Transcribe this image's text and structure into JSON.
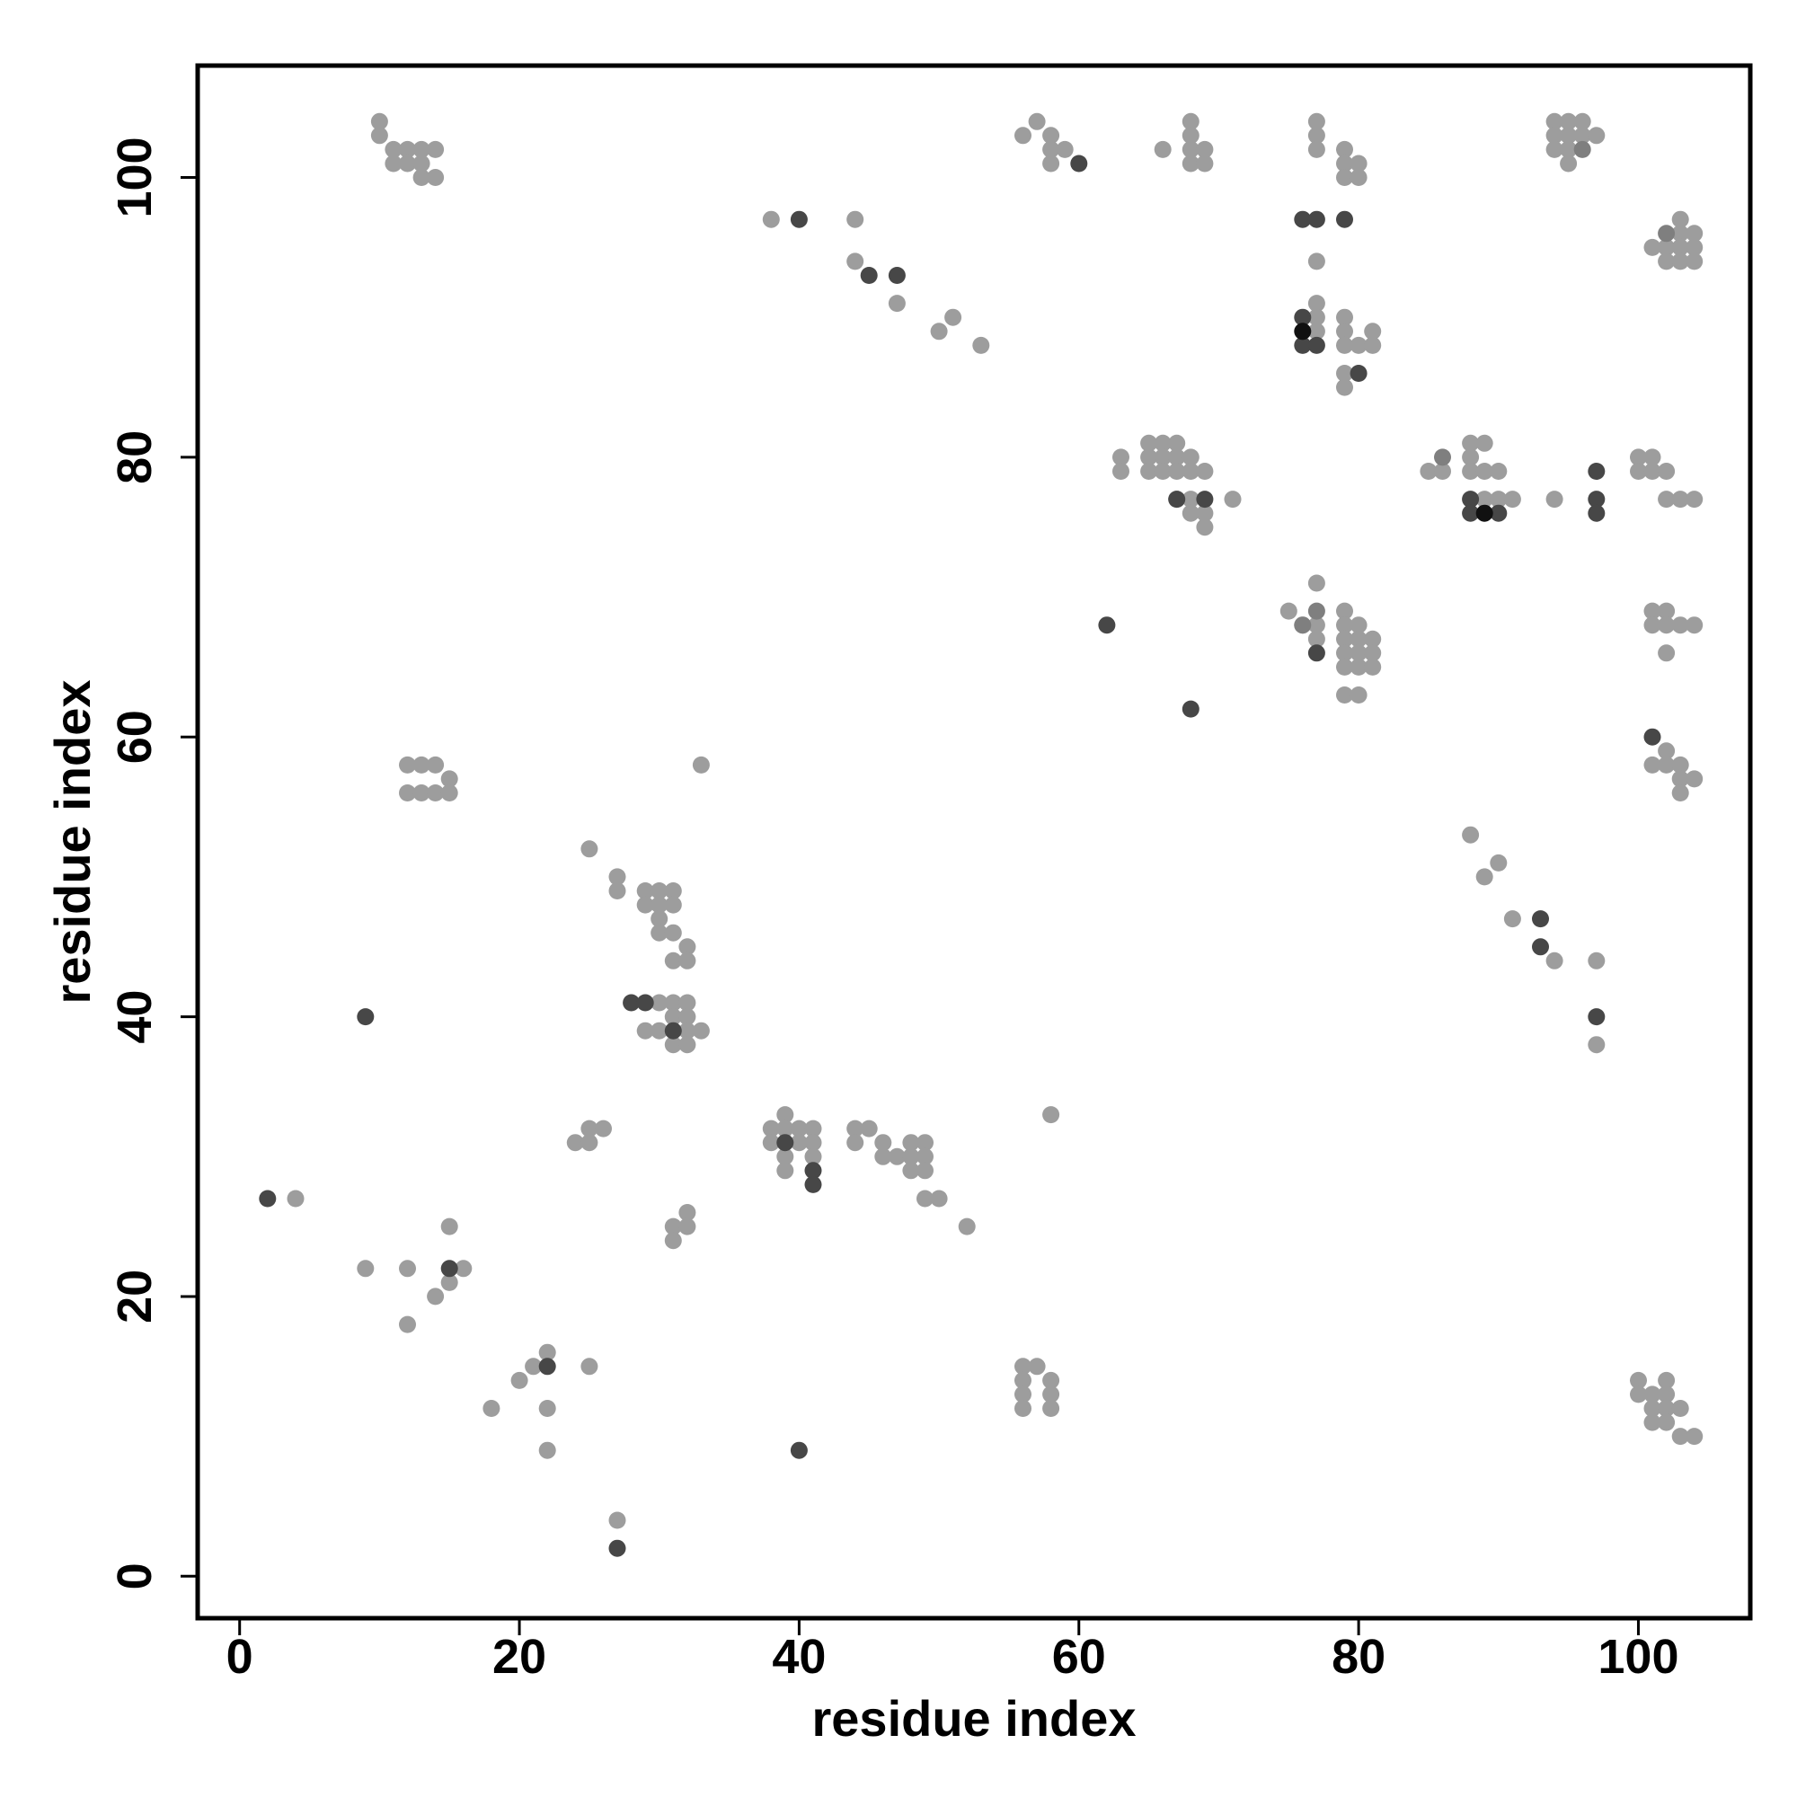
{
  "chart_data": {
    "type": "scatter",
    "title": "",
    "xlabel": "residue index",
    "ylabel": "residue index",
    "xlim": [
      -3,
      108
    ],
    "ylim": [
      -3,
      108
    ],
    "x_ticks": [
      0,
      20,
      40,
      60,
      80,
      100
    ],
    "y_ticks": [
      0,
      20,
      40,
      60,
      80,
      100
    ],
    "x_tick_labels": [
      "0",
      "20",
      "40",
      "60",
      "80",
      "100"
    ],
    "y_tick_labels": [
      "0",
      "20",
      "40",
      "60",
      "80",
      "100"
    ],
    "grid": false,
    "colors": {
      "light": "#9d9d9d",
      "mid": "#7f7f7f",
      "dark": "#474747",
      "black": "#111111"
    },
    "series": [
      {
        "color_key": "light",
        "points": [
          [
            10,
            104
          ],
          [
            10,
            103
          ],
          [
            11,
            102
          ],
          [
            11,
            101
          ],
          [
            12,
            102
          ],
          [
            12,
            101
          ],
          [
            13,
            102
          ],
          [
            13,
            101
          ],
          [
            14,
            102
          ],
          [
            14,
            100
          ],
          [
            13,
            100
          ],
          [
            12,
            58
          ],
          [
            13,
            58
          ],
          [
            14,
            58
          ],
          [
            12,
            56
          ],
          [
            13,
            56
          ],
          [
            14,
            56
          ],
          [
            15,
            57
          ],
          [
            15,
            56
          ],
          [
            4,
            27
          ],
          [
            9,
            22
          ],
          [
            12,
            22
          ],
          [
            12,
            18
          ],
          [
            14,
            20
          ],
          [
            15,
            25
          ],
          [
            15,
            21
          ],
          [
            16,
            22
          ],
          [
            18,
            12
          ],
          [
            20,
            14
          ],
          [
            21,
            15
          ],
          [
            22,
            16
          ],
          [
            22,
            12
          ],
          [
            22,
            9
          ],
          [
            25,
            15
          ],
          [
            27,
            4
          ],
          [
            24,
            31
          ],
          [
            25,
            32
          ],
          [
            25,
            31
          ],
          [
            26,
            32
          ],
          [
            31,
            25
          ],
          [
            31,
            24
          ],
          [
            32,
            26
          ],
          [
            32,
            25
          ],
          [
            25,
            52
          ],
          [
            27,
            50
          ],
          [
            27,
            49
          ],
          [
            29,
            49
          ],
          [
            29,
            48
          ],
          [
            30,
            49
          ],
          [
            30,
            48
          ],
          [
            30,
            47
          ],
          [
            30,
            46
          ],
          [
            31,
            49
          ],
          [
            31,
            48
          ],
          [
            31,
            46
          ],
          [
            31,
            44
          ],
          [
            32,
            45
          ],
          [
            32,
            44
          ],
          [
            30,
            41
          ],
          [
            31,
            41
          ],
          [
            32,
            41
          ],
          [
            31,
            40
          ],
          [
            32,
            40
          ],
          [
            29,
            39
          ],
          [
            30,
            39
          ],
          [
            32,
            39
          ],
          [
            33,
            39
          ],
          [
            31,
            38
          ],
          [
            32,
            38
          ],
          [
            33,
            58
          ],
          [
            38,
            32
          ],
          [
            38,
            31
          ],
          [
            39,
            33
          ],
          [
            39,
            32
          ],
          [
            39,
            30
          ],
          [
            39,
            29
          ],
          [
            40,
            32
          ],
          [
            40,
            31
          ],
          [
            41,
            32
          ],
          [
            41,
            31
          ],
          [
            41,
            30
          ],
          [
            44,
            32
          ],
          [
            44,
            31
          ],
          [
            45,
            32
          ],
          [
            46,
            31
          ],
          [
            46,
            30
          ],
          [
            47,
            30
          ],
          [
            48,
            31
          ],
          [
            48,
            30
          ],
          [
            48,
            29
          ],
          [
            49,
            31
          ],
          [
            49,
            30
          ],
          [
            49,
            29
          ],
          [
            49,
            27
          ],
          [
            50,
            27
          ],
          [
            52,
            25
          ],
          [
            56,
            15
          ],
          [
            57,
            15
          ],
          [
            56,
            14
          ],
          [
            58,
            14
          ],
          [
            56,
            13
          ],
          [
            58,
            13
          ],
          [
            56,
            12
          ],
          [
            58,
            12
          ],
          [
            58,
            33
          ],
          [
            38,
            97
          ],
          [
            44,
            97
          ],
          [
            44,
            94
          ],
          [
            47,
            91
          ],
          [
            50,
            89
          ],
          [
            51,
            90
          ],
          [
            53,
            88
          ],
          [
            56,
            103
          ],
          [
            57,
            104
          ],
          [
            58,
            103
          ],
          [
            58,
            102
          ],
          [
            58,
            101
          ],
          [
            59,
            102
          ],
          [
            66,
            102
          ],
          [
            68,
            104
          ],
          [
            68,
            103
          ],
          [
            68,
            102
          ],
          [
            68,
            101
          ],
          [
            69,
            102
          ],
          [
            69,
            101
          ],
          [
            77,
            104
          ],
          [
            77,
            103
          ],
          [
            77,
            102
          ],
          [
            79,
            102
          ],
          [
            79,
            101
          ],
          [
            79,
            100
          ],
          [
            80,
            101
          ],
          [
            80,
            100
          ],
          [
            77,
            94
          ],
          [
            77,
            91
          ],
          [
            77,
            90
          ],
          [
            77,
            89
          ],
          [
            79,
            90
          ],
          [
            79,
            89
          ],
          [
            79,
            88
          ],
          [
            80,
            88
          ],
          [
            81,
            89
          ],
          [
            81,
            88
          ],
          [
            79,
            86
          ],
          [
            79,
            85
          ],
          [
            63,
            80
          ],
          [
            63,
            79
          ],
          [
            65,
            81
          ],
          [
            65,
            80
          ],
          [
            65,
            79
          ],
          [
            66,
            81
          ],
          [
            66,
            80
          ],
          [
            66,
            79
          ],
          [
            67,
            81
          ],
          [
            67,
            80
          ],
          [
            67,
            79
          ],
          [
            67,
            77
          ],
          [
            68,
            80
          ],
          [
            68,
            79
          ],
          [
            68,
            77
          ],
          [
            68,
            76
          ],
          [
            69,
            79
          ],
          [
            69,
            76
          ],
          [
            69,
            75
          ],
          [
            71,
            77
          ],
          [
            75,
            69
          ],
          [
            76,
            68
          ],
          [
            77,
            71
          ],
          [
            77,
            68
          ],
          [
            77,
            67
          ],
          [
            79,
            69
          ],
          [
            79,
            68
          ],
          [
            79,
            67
          ],
          [
            79,
            66
          ],
          [
            79,
            65
          ],
          [
            80,
            68
          ],
          [
            80,
            67
          ],
          [
            80,
            66
          ],
          [
            80,
            65
          ],
          [
            81,
            67
          ],
          [
            81,
            66
          ],
          [
            81,
            65
          ],
          [
            79,
            63
          ],
          [
            80,
            63
          ],
          [
            85,
            79
          ],
          [
            86,
            79
          ],
          [
            88,
            81
          ],
          [
            88,
            80
          ],
          [
            88,
            79
          ],
          [
            89,
            81
          ],
          [
            89,
            79
          ],
          [
            89,
            77
          ],
          [
            90,
            79
          ],
          [
            90,
            77
          ],
          [
            91,
            77
          ],
          [
            94,
            77
          ],
          [
            94,
            104
          ],
          [
            95,
            104
          ],
          [
            96,
            104
          ],
          [
            94,
            103
          ],
          [
            95,
            103
          ],
          [
            96,
            103
          ],
          [
            97,
            103
          ],
          [
            94,
            102
          ],
          [
            95,
            102
          ],
          [
            95,
            101
          ],
          [
            103,
            97
          ],
          [
            101,
            95
          ],
          [
            102,
            95
          ],
          [
            103,
            96
          ],
          [
            103,
            95
          ],
          [
            104,
            96
          ],
          [
            104,
            95
          ],
          [
            102,
            94
          ],
          [
            103,
            94
          ],
          [
            104,
            94
          ],
          [
            100,
            80
          ],
          [
            101,
            80
          ],
          [
            100,
            79
          ],
          [
            101,
            79
          ],
          [
            102,
            79
          ],
          [
            102,
            77
          ],
          [
            103,
            77
          ],
          [
            104,
            77
          ],
          [
            101,
            69
          ],
          [
            102,
            69
          ],
          [
            101,
            68
          ],
          [
            102,
            68
          ],
          [
            103,
            68
          ],
          [
            104,
            68
          ],
          [
            102,
            66
          ],
          [
            102,
            59
          ],
          [
            101,
            58
          ],
          [
            102,
            58
          ],
          [
            103,
            58
          ],
          [
            103,
            57
          ],
          [
            104,
            57
          ],
          [
            103,
            56
          ],
          [
            88,
            53
          ],
          [
            89,
            50
          ],
          [
            90,
            51
          ],
          [
            91,
            47
          ],
          [
            94,
            44
          ],
          [
            97,
            44
          ],
          [
            97,
            38
          ],
          [
            100,
            14
          ],
          [
            102,
            14
          ],
          [
            100,
            13
          ],
          [
            101,
            13
          ],
          [
            102,
            13
          ],
          [
            101,
            12
          ],
          [
            102,
            12
          ],
          [
            103,
            12
          ],
          [
            101,
            11
          ],
          [
            102,
            11
          ],
          [
            103,
            10
          ],
          [
            104,
            10
          ]
        ]
      },
      {
        "color_key": "mid",
        "points": [
          [
            102,
            96
          ],
          [
            86,
            80
          ],
          [
            96,
            102
          ],
          [
            76,
            68
          ],
          [
            77,
            69
          ]
        ]
      },
      {
        "color_key": "dark",
        "points": [
          [
            2,
            27
          ],
          [
            9,
            40
          ],
          [
            15,
            22
          ],
          [
            22,
            15
          ],
          [
            27,
            2
          ],
          [
            28,
            41
          ],
          [
            29,
            41
          ],
          [
            31,
            39
          ],
          [
            39,
            31
          ],
          [
            40,
            9
          ],
          [
            41,
            29
          ],
          [
            41,
            28
          ],
          [
            40,
            97
          ],
          [
            45,
            93
          ],
          [
            47,
            93
          ],
          [
            60,
            101
          ],
          [
            62,
            68
          ],
          [
            68,
            62
          ],
          [
            67,
            77
          ],
          [
            69,
            77
          ],
          [
            76,
            97
          ],
          [
            77,
            97
          ],
          [
            79,
            97
          ],
          [
            76,
            90
          ],
          [
            76,
            88
          ],
          [
            77,
            88
          ],
          [
            80,
            86
          ],
          [
            77,
            66
          ],
          [
            88,
            77
          ],
          [
            88,
            76
          ],
          [
            90,
            76
          ],
          [
            97,
            79
          ],
          [
            97,
            77
          ],
          [
            97,
            76
          ],
          [
            93,
            47
          ],
          [
            93,
            45
          ],
          [
            97,
            40
          ],
          [
            101,
            60
          ]
        ]
      },
      {
        "color_key": "black",
        "points": [
          [
            76,
            89
          ],
          [
            89,
            76
          ]
        ]
      }
    ]
  }
}
